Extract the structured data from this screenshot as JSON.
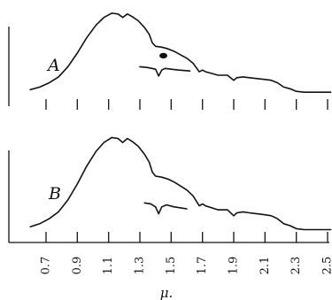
{
  "chart_data": {
    "type": "line",
    "x_unit_label": "μ.",
    "x_ticks": [
      "0.7",
      "0.9",
      "1.1",
      "1.3",
      "1.5",
      "1.7",
      "1.9",
      "2.1",
      "2.3",
      "2.5"
    ],
    "x_tick_values": [
      0.7,
      0.9,
      1.1,
      1.3,
      1.5,
      1.7,
      1.9,
      2.1,
      2.3,
      2.5
    ],
    "xlim": [
      0.6,
      2.53
    ],
    "panels": [
      {
        "letter": "A",
        "ylim": [
          0,
          100
        ],
        "spectrum": {
          "x": [
            0.6,
            0.66,
            0.72,
            0.78,
            0.84,
            0.9,
            0.96,
            1.02,
            1.07,
            1.12,
            1.16,
            1.19,
            1.22,
            1.25,
            1.29,
            1.33,
            1.36,
            1.38,
            1.4,
            1.44,
            1.48,
            1.52,
            1.56,
            1.6,
            1.64,
            1.66,
            1.68,
            1.7,
            1.72,
            1.76,
            1.8,
            1.86,
            1.9,
            1.92,
            1.96,
            2.0,
            2.05,
            2.1,
            2.14,
            2.18,
            2.22,
            2.26,
            2.3,
            2.35,
            2.42,
            2.52
          ],
          "y": [
            7,
            10,
            15,
            22,
            34,
            50,
            68,
            83,
            92,
            97,
            96,
            92,
            96,
            93,
            88,
            80,
            72,
            62,
            58,
            57,
            55,
            52,
            48,
            44,
            38,
            33,
            28,
            30,
            28,
            26,
            24,
            24,
            18,
            21,
            22,
            21,
            20,
            19,
            18,
            15,
            10,
            8,
            5,
            4,
            4,
            4
          ]
        },
        "inset": {
          "x": [
            1.3,
            1.35,
            1.4,
            1.42,
            1.44,
            1.46,
            1.5,
            1.55,
            1.62
          ],
          "y": [
            34,
            33,
            31,
            23,
            30,
            32,
            31,
            30,
            29
          ]
        },
        "blot": {
          "x": 1.45,
          "y": 47
        }
      },
      {
        "letter": "B",
        "ylim": [
          0,
          100
        ],
        "spectrum": {
          "x": [
            0.6,
            0.66,
            0.72,
            0.78,
            0.84,
            0.9,
            0.96,
            1.02,
            1.07,
            1.12,
            1.16,
            1.19,
            1.22,
            1.25,
            1.29,
            1.33,
            1.36,
            1.38,
            1.4,
            1.44,
            1.48,
            1.52,
            1.56,
            1.6,
            1.64,
            1.66,
            1.68,
            1.7,
            1.72,
            1.76,
            1.8,
            1.86,
            1.9,
            1.92,
            1.96,
            2.0,
            2.05,
            2.1,
            2.14,
            2.18,
            2.22,
            2.26,
            2.3,
            2.35,
            2.42,
            2.52
          ],
          "y": [
            7,
            10,
            15,
            22,
            34,
            50,
            68,
            83,
            92,
            97,
            96,
            92,
            96,
            93,
            88,
            80,
            72,
            62,
            58,
            57,
            55,
            52,
            48,
            44,
            38,
            33,
            28,
            30,
            28,
            26,
            24,
            24,
            18,
            21,
            22,
            21,
            20,
            19,
            18,
            15,
            10,
            8,
            5,
            4,
            4,
            4
          ]
        },
        "inset": {
          "x": [
            1.33,
            1.37,
            1.4,
            1.42,
            1.44,
            1.47,
            1.52,
            1.6
          ],
          "y": [
            31,
            30,
            27,
            20,
            27,
            29,
            27,
            25
          ]
        }
      }
    ]
  }
}
